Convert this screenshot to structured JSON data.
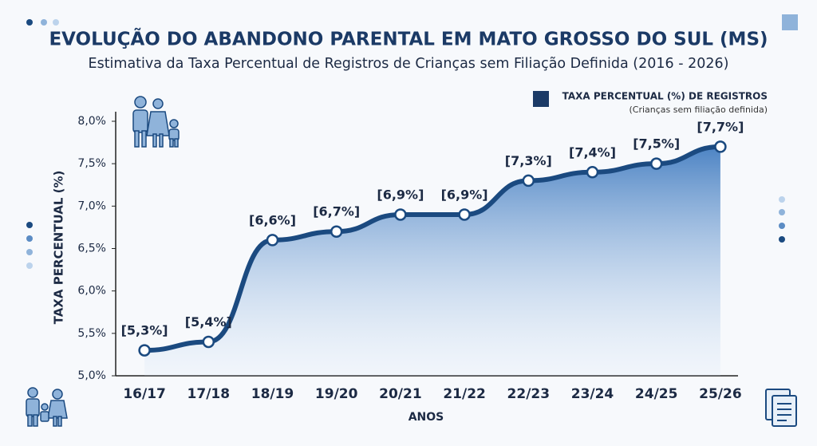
{
  "chart_data": {
    "type": "area",
    "title": "EVOLUÇÃO DO ABANDONO PARENTAL EM MATO GROSSO DO SUL (MS)",
    "subtitle": "Estimativa da Taxa Percentual de Registros de Crianças sem Filiação Definida (2016 - 2026)",
    "x_label": "ANOS",
    "y_label": "TAXA PERCENTUAL (%)",
    "categories": [
      "16/17",
      "17/18",
      "18/19",
      "19/20",
      "20/21",
      "21/22",
      "22/23",
      "23/24",
      "24/25",
      "25/26"
    ],
    "series": [
      {
        "name": "TAXA PERCENTUAL (%) DE REGISTROS",
        "color": "#1b4a80",
        "values": [
          5.3,
          5.4,
          6.6,
          6.7,
          6.9,
          6.9,
          7.3,
          7.4,
          7.5,
          7.7
        ],
        "value_labels": [
          "[5,3%]",
          "[5,4%]",
          "[6,6%]",
          "[6,7%]",
          "[6,9%]",
          "[6,9%]",
          "[7,3%]",
          "[7,4%]",
          "[7,5%]",
          "[7,7%]"
        ]
      }
    ],
    "legend_note": "(Crianças sem filiação definida)",
    "legend": "upper right",
    "ylim": [
      5.0,
      8.0
    ],
    "yticks": [
      {
        "value": 5.0,
        "label": "5,0%"
      },
      {
        "value": 5.5,
        "label": "5,5%"
      },
      {
        "value": 6.0,
        "label": "6,0%"
      },
      {
        "value": 6.5,
        "label": "6,5%"
      },
      {
        "value": 7.0,
        "label": "7,0%"
      },
      {
        "value": 7.5,
        "label": "7,5%"
      },
      {
        "value": 8.0,
        "label": "8,0%"
      }
    ],
    "grid": false
  }
}
